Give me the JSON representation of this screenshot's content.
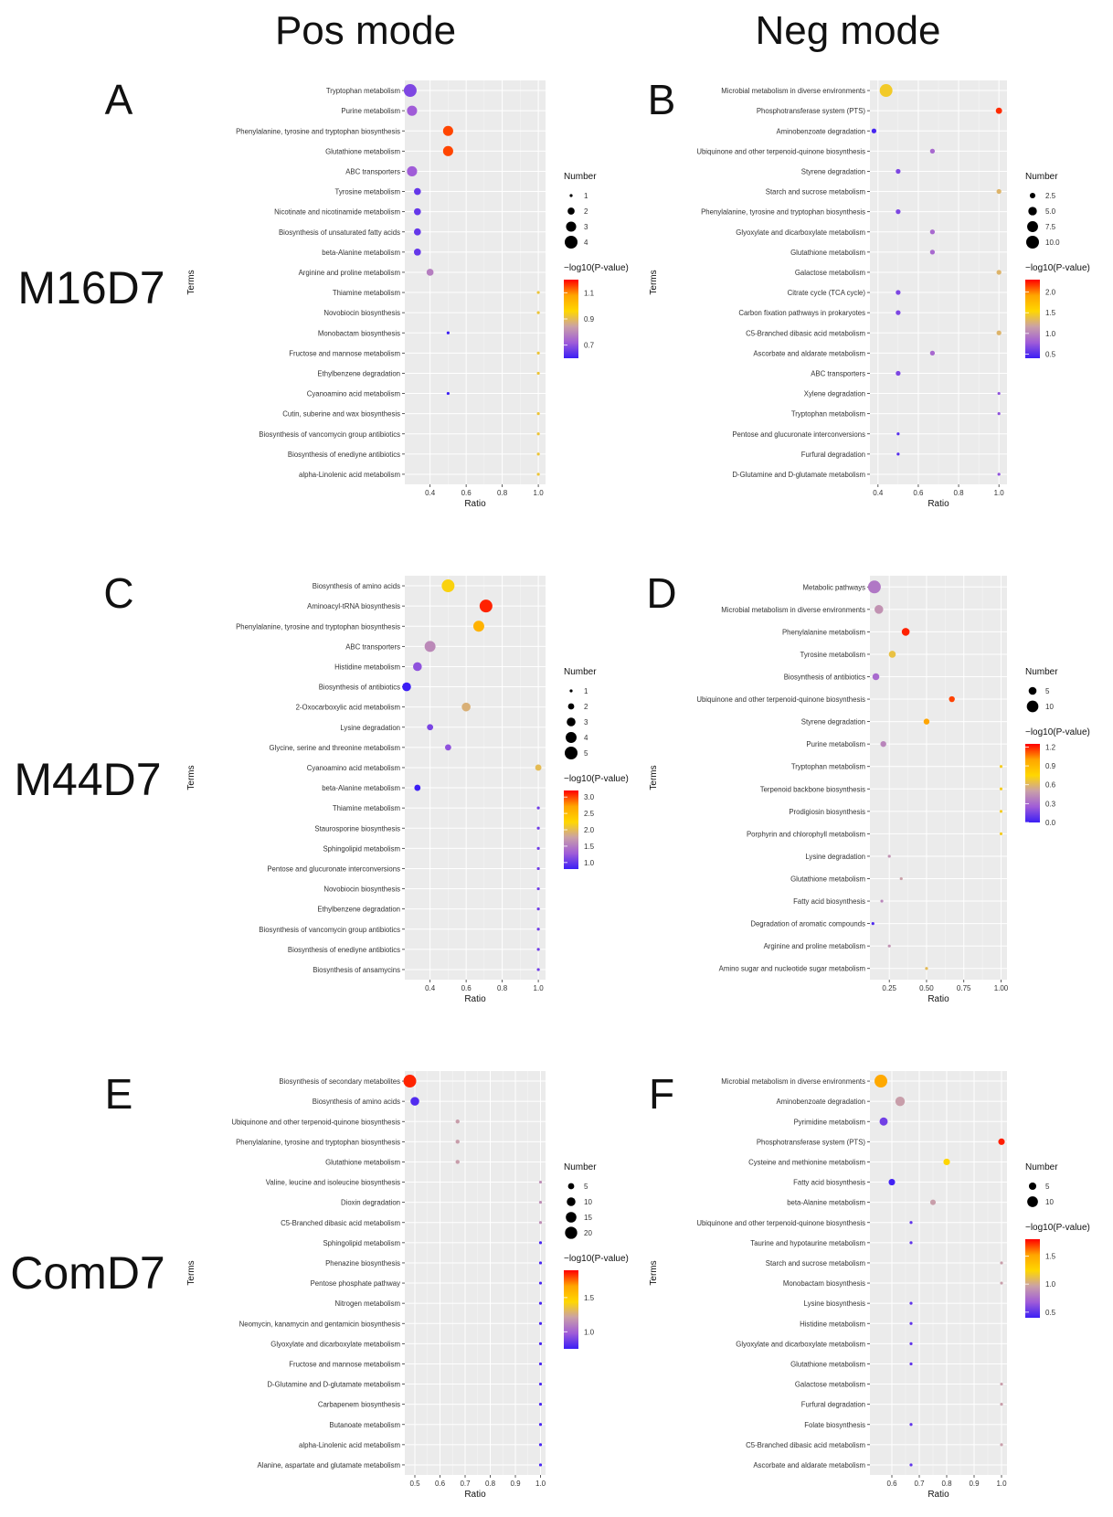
{
  "column_headers": [
    "Pos mode",
    "Neg mode"
  ],
  "row_labels": [
    "M16D7",
    "M44D7",
    "ComD7"
  ],
  "colors": {
    "panel_bg": "#ebebeb",
    "grid": "#ffffff",
    "low": "#3b1ef5",
    "mid1": "#a05cd8",
    "mid2": "#c9a0a8",
    "mid3": "#ffd700",
    "mid4": "#ffa500",
    "high": "#ff0000"
  },
  "chart_data": [
    {
      "type": "scatter",
      "panel_letter": "A",
      "xlabel": "Ratio",
      "ylabel": "Terms",
      "xlim": [
        0.26,
        1.04
      ],
      "xticks": [
        0.4,
        0.6,
        0.8,
        1.0
      ],
      "xtick_labels": [
        "0.4",
        "0.6",
        "0.8",
        "1.0"
      ],
      "size_legend_title": "Number",
      "size_ticks": [
        1,
        2,
        3,
        4
      ],
      "size_tick_labels": [
        "1",
        "2",
        "3",
        "4"
      ],
      "size_range": [
        1,
        4
      ],
      "color_legend_title": "−log10(P-value)",
      "color_ticks": [
        0.7,
        0.9,
        1.1
      ],
      "color_tick_labels": [
        "0.7",
        "0.9",
        "1.1"
      ],
      "color_range": [
        0.6,
        1.2
      ],
      "terms": [
        "Tryptophan metabolism",
        "Purine metabolism",
        "Phenylalanine, tyrosine and tryptophan biosynthesis",
        "Glutathione metabolism",
        "ABC transporters",
        "Tyrosine metabolism",
        "Nicotinate and nicotinamide metabolism",
        "Biosynthesis of unsaturated fatty acids",
        "beta-Alanine metabolism",
        "Arginine and proline metabolism",
        "Thiamine metabolism",
        "Novobiocin biosynthesis",
        "Monobactam biosynthesis",
        "Fructose and mannose metabolism",
        "Ethylbenzene degradation",
        "Cyanoamino acid metabolism",
        "Cutin, suberine and wax biosynthesis",
        "Biosynthesis of vancomycin group antibiotics",
        "Biosynthesis of enediyne antibiotics",
        "alpha-Linolenic acid metabolism"
      ],
      "ratio": [
        0.29,
        0.3,
        0.5,
        0.5,
        0.3,
        0.33,
        0.33,
        0.33,
        0.33,
        0.4,
        1.0,
        1.0,
        0.5,
        1.0,
        1.0,
        0.5,
        1.0,
        1.0,
        1.0,
        1.0
      ],
      "number": [
        4,
        3,
        3,
        3,
        3,
        2,
        2,
        2,
        2,
        2,
        1,
        1,
        1,
        1,
        1,
        1,
        1,
        1,
        1,
        1
      ],
      "neglog10p": [
        0.68,
        0.72,
        1.15,
        1.15,
        0.72,
        0.65,
        0.65,
        0.65,
        0.65,
        0.78,
        0.92,
        0.92,
        0.6,
        0.92,
        0.92,
        0.6,
        0.92,
        0.92,
        0.92,
        0.92
      ]
    },
    {
      "type": "scatter",
      "panel_letter": "B",
      "xlabel": "Ratio",
      "ylabel": "Terms",
      "xlim": [
        0.36,
        1.04
      ],
      "xticks": [
        0.4,
        0.6,
        0.8,
        1.0
      ],
      "xtick_labels": [
        "0.4",
        "0.6",
        "0.8",
        "1.0"
      ],
      "size_legend_title": "Number",
      "size_ticks": [
        2.5,
        5.0,
        7.5,
        10.0
      ],
      "size_tick_labels": [
        "2.5",
        "5.0",
        "7.5",
        "10.0"
      ],
      "size_range": [
        1,
        10
      ],
      "color_legend_title": "−log10(P-value)",
      "color_ticks": [
        0.5,
        1.0,
        1.5,
        2.0
      ],
      "color_tick_labels": [
        "0.5",
        "1.0",
        "1.5",
        "2.0"
      ],
      "color_range": [
        0.4,
        2.3
      ],
      "terms": [
        "Microbial metabolism in diverse environments",
        "Phosphotransferase system (PTS)",
        "Aminobenzoate degradation",
        "Ubiquinone and other terpenoid-quinone biosynthesis",
        "Styrene degradation",
        "Starch and sucrose metabolism",
        "Phenylalanine, tyrosine and tryptophan biosynthesis",
        "Glyoxylate and dicarboxylate metabolism",
        "Glutathione metabolism",
        "Galactose metabolism",
        "Citrate cycle (TCA cycle)",
        "Carbon fixation pathways in prokaryotes",
        "C5-Branched dibasic acid metabolism",
        "Ascorbate and aldarate metabolism",
        "ABC transporters",
        "Xylene degradation",
        "Tryptophan metabolism",
        "Pentose and glucuronate interconversions",
        "Furfural degradation",
        "D-Glutamine and D-glutamate metabolism"
      ],
      "ratio": [
        0.44,
        1.0,
        0.38,
        0.67,
        0.5,
        1.0,
        0.5,
        0.67,
        0.67,
        1.0,
        0.5,
        0.5,
        1.0,
        0.67,
        0.5,
        1.0,
        1.0,
        0.5,
        0.5,
        1.0
      ],
      "number": [
        10,
        3,
        2,
        2,
        2,
        2,
        2,
        2,
        2,
        2,
        2,
        2,
        2,
        2,
        2,
        1,
        1,
        1,
        1,
        1
      ],
      "neglog10p": [
        1.45,
        2.2,
        0.45,
        0.85,
        0.65,
        1.3,
        0.65,
        0.85,
        0.85,
        1.3,
        0.65,
        0.65,
        1.3,
        0.85,
        0.65,
        0.72,
        0.72,
        0.5,
        0.5,
        0.72
      ]
    },
    {
      "type": "scatter",
      "panel_letter": "C",
      "xlabel": "Ratio",
      "ylabel": "Terms",
      "xlim": [
        0.26,
        1.04
      ],
      "xticks": [
        0.4,
        0.6,
        0.8,
        1.0
      ],
      "xtick_labels": [
        "0.4",
        "0.6",
        "0.8",
        "1.0"
      ],
      "size_legend_title": "Number",
      "size_ticks": [
        1,
        2,
        3,
        4,
        5
      ],
      "size_tick_labels": [
        "1",
        "2",
        "3",
        "4",
        "5"
      ],
      "size_range": [
        1,
        5
      ],
      "color_legend_title": "−log10(P-value)",
      "color_ticks": [
        1.0,
        1.5,
        2.0,
        2.5,
        3.0
      ],
      "color_tick_labels": [
        "1.0",
        "1.5",
        "2.0",
        "2.5",
        "3.0"
      ],
      "color_range": [
        0.8,
        3.2
      ],
      "terms": [
        "Biosynthesis of amino acids",
        "Aminoacyl-tRNA biosynthesis",
        "Phenylalanine, tyrosine and tryptophan biosynthesis",
        "ABC transporters",
        "Histidine metabolism",
        "Biosynthesis of antibiotics",
        "2-Oxocarboxylic acid metabolism",
        "Lysine degradation",
        "Glycine, serine and threonine metabolism",
        "Cyanoamino acid metabolism",
        "beta-Alanine metabolism",
        "Thiamine metabolism",
        "Staurosporine biosynthesis",
        "Sphingolipid metabolism",
        "Pentose and glucuronate interconversions",
        "Novobiocin biosynthesis",
        "Ethylbenzene degradation",
        "Biosynthesis of vancomycin group antibiotics",
        "Biosynthesis of enediyne antibiotics",
        "Biosynthesis of ansamycins"
      ],
      "ratio": [
        0.5,
        0.71,
        0.67,
        0.4,
        0.33,
        0.27,
        0.6,
        0.4,
        0.5,
        1.0,
        0.33,
        1.0,
        1.0,
        1.0,
        1.0,
        1.0,
        1.0,
        1.0,
        1.0,
        1.0
      ],
      "number": [
        5,
        5,
        4,
        4,
        3,
        3,
        3,
        2,
        2,
        2,
        2,
        1,
        1,
        1,
        1,
        1,
        1,
        1,
        1,
        1
      ],
      "neglog10p": [
        2.2,
        3.1,
        2.6,
        1.6,
        1.2,
        0.8,
        1.9,
        1.1,
        1.2,
        2.0,
        0.8,
        1.05,
        1.05,
        1.05,
        1.05,
        1.05,
        1.05,
        1.05,
        1.05,
        1.05
      ]
    },
    {
      "type": "scatter",
      "panel_letter": "D",
      "xlabel": "Ratio",
      "ylabel": "Terms",
      "xlim": [
        0.12,
        1.04
      ],
      "xticks": [
        0.25,
        0.5,
        0.75,
        1.0
      ],
      "xtick_labels": [
        "0.25",
        "0.50",
        "0.75",
        "1.00"
      ],
      "size_legend_title": "Number",
      "size_ticks": [
        5,
        10
      ],
      "size_tick_labels": [
        "5",
        "10"
      ],
      "size_range": [
        1,
        12
      ],
      "color_legend_title": "−log10(P-value)",
      "color_ticks": [
        0.0,
        0.3,
        0.6,
        0.9,
        1.2
      ],
      "color_tick_labels": [
        "0.0",
        "0.3",
        "0.6",
        "0.9",
        "1.2"
      ],
      "color_range": [
        0.0,
        1.25
      ],
      "terms": [
        "Metabolic pathways",
        "Microbial metabolism in diverse environments",
        "Phenylalanine metabolism",
        "Tyrosine metabolism",
        "Biosynthesis of antibiotics",
        "Ubiquinone and other terpenoid-quinone biosynthesis",
        "Styrene degradation",
        "Purine metabolism",
        "Tryptophan metabolism",
        "Terpenoid backbone biosynthesis",
        "Prodigiosin biosynthesis",
        "Porphyrin and chlorophyll metabolism",
        "Lysine degradation",
        "Glutathione metabolism",
        "Fatty acid biosynthesis",
        "Degradation of aromatic compounds",
        "Arginine and proline metabolism",
        "Amino sugar and nucleotide sugar metabolism"
      ],
      "ratio": [
        0.15,
        0.18,
        0.36,
        0.27,
        0.16,
        0.67,
        0.5,
        0.21,
        1.0,
        1.0,
        1.0,
        1.0,
        0.25,
        0.33,
        0.2,
        0.14,
        0.25,
        0.5
      ],
      "number": [
        12,
        6,
        5,
        4,
        4,
        3,
        3,
        3,
        1,
        1,
        1,
        1,
        1,
        1,
        1,
        1,
        1,
        1
      ],
      "neglog10p": [
        0.35,
        0.45,
        1.2,
        0.65,
        0.3,
        1.15,
        1.0,
        0.4,
        0.7,
        0.7,
        0.7,
        0.7,
        0.45,
        0.5,
        0.4,
        0.05,
        0.45,
        0.62
      ]
    },
    {
      "type": "scatter",
      "panel_letter": "E",
      "xlabel": "Ratio",
      "ylabel": "Terms",
      "xlim": [
        0.46,
        1.02
      ],
      "xticks": [
        0.5,
        0.6,
        0.7,
        0.8,
        0.9,
        1.0
      ],
      "xtick_labels": [
        "0.5",
        "0.6",
        "0.7",
        "0.8",
        "0.9",
        "1.0"
      ],
      "size_legend_title": "Number",
      "size_ticks": [
        5,
        10,
        15,
        20
      ],
      "size_tick_labels": [
        "5",
        "10",
        "15",
        "20"
      ],
      "size_range": [
        1,
        22
      ],
      "color_legend_title": "−log10(P-value)",
      "color_ticks": [
        1.0,
        1.5
      ],
      "color_tick_labels": [
        "1.0",
        "1.5"
      ],
      "color_range": [
        0.75,
        1.9
      ],
      "terms": [
        "Biosynthesis of secondary metabolites",
        "Biosynthesis of amino acids",
        "Ubiquinone and other terpenoid-quinone biosynthesis",
        "Phenylalanine, tyrosine and tryptophan biosynthesis",
        "Glutathione metabolism",
        "Valine, leucine and isoleucine biosynthesis",
        "Dioxin degradation",
        "C5-Branched dibasic acid metabolism",
        "Sphingolipid metabolism",
        "Phenazine biosynthesis",
        "Pentose phosphate pathway",
        "Nitrogen metabolism",
        "Neomycin, kanamycin and gentamicin biosynthesis",
        "Glyoxylate and dicarboxylate metabolism",
        "Fructose and mannose metabolism",
        "D-Glutamine and D-glutamate metabolism",
        "Carbapenem biosynthesis",
        "Butanoate metabolism",
        "alpha-Linolenic acid metabolism",
        "Alanine, aspartate and glutamate metabolism"
      ],
      "ratio": [
        0.48,
        0.5,
        0.67,
        0.67,
        0.67,
        1.0,
        1.0,
        1.0,
        1.0,
        1.0,
        1.0,
        1.0,
        1.0,
        1.0,
        1.0,
        1.0,
        1.0,
        1.0,
        1.0,
        1.0
      ],
      "number": [
        22,
        10,
        2,
        2,
        2,
        1,
        1,
        1,
        1,
        1,
        1,
        1,
        1,
        1,
        1,
        1,
        1,
        1,
        1,
        1
      ],
      "neglog10p": [
        1.85,
        0.8,
        1.2,
        1.2,
        1.2,
        1.15,
        1.15,
        1.15,
        0.78,
        0.78,
        0.78,
        0.78,
        0.78,
        0.78,
        0.78,
        0.78,
        0.78,
        0.78,
        0.78,
        0.78
      ]
    },
    {
      "type": "scatter",
      "panel_letter": "F",
      "xlabel": "Ratio",
      "ylabel": "Terms",
      "xlim": [
        0.52,
        1.02
      ],
      "xticks": [
        0.6,
        0.7,
        0.8,
        0.9,
        1.0
      ],
      "xtick_labels": [
        "0.6",
        "0.7",
        "0.8",
        "0.9",
        "1.0"
      ],
      "size_legend_title": "Number",
      "size_ticks": [
        5,
        10
      ],
      "size_tick_labels": [
        "5",
        "10"
      ],
      "size_range": [
        1,
        14
      ],
      "color_legend_title": "−log10(P-value)",
      "color_ticks": [
        0.5,
        1.0,
        1.5
      ],
      "color_tick_labels": [
        "0.5",
        "1.0",
        "1.5"
      ],
      "color_range": [
        0.4,
        1.8
      ],
      "terms": [
        "Microbial metabolism in diverse environments",
        "Aminobenzoate degradation",
        "Pyrimidine metabolism",
        "Phosphotransferase system (PTS)",
        "Cysteine and methionine metabolism",
        "Fatty acid biosynthesis",
        "beta-Alanine metabolism",
        "Ubiquinone and other terpenoid-quinone biosynthesis",
        "Taurine and hypotaurine metabolism",
        "Starch and sucrose metabolism",
        "Monobactam biosynthesis",
        "Lysine biosynthesis",
        "Histidine metabolism",
        "Glyoxylate and dicarboxylate metabolism",
        "Glutathione metabolism",
        "Galactose metabolism",
        "Furfural degradation",
        "Folate biosynthesis",
        "C5-Branched dibasic acid metabolism",
        "Ascorbate and aldarate metabolism"
      ],
      "ratio": [
        0.56,
        0.63,
        0.57,
        1.0,
        0.8,
        0.6,
        0.75,
        0.67,
        0.67,
        1.0,
        1.0,
        0.67,
        0.67,
        0.67,
        0.67,
        1.0,
        1.0,
        0.67,
        1.0,
        0.67
      ],
      "number": [
        14,
        8,
        6,
        4,
        4,
        4,
        3,
        1,
        1,
        1,
        1,
        1,
        1,
        1,
        1,
        1,
        1,
        1,
        1,
        1
      ],
      "neglog10p": [
        1.5,
        0.95,
        0.55,
        1.75,
        1.25,
        0.42,
        0.95,
        0.5,
        0.5,
        0.95,
        0.95,
        0.5,
        0.5,
        0.5,
        0.5,
        0.95,
        0.95,
        0.5,
        0.95,
        0.5
      ]
    }
  ]
}
